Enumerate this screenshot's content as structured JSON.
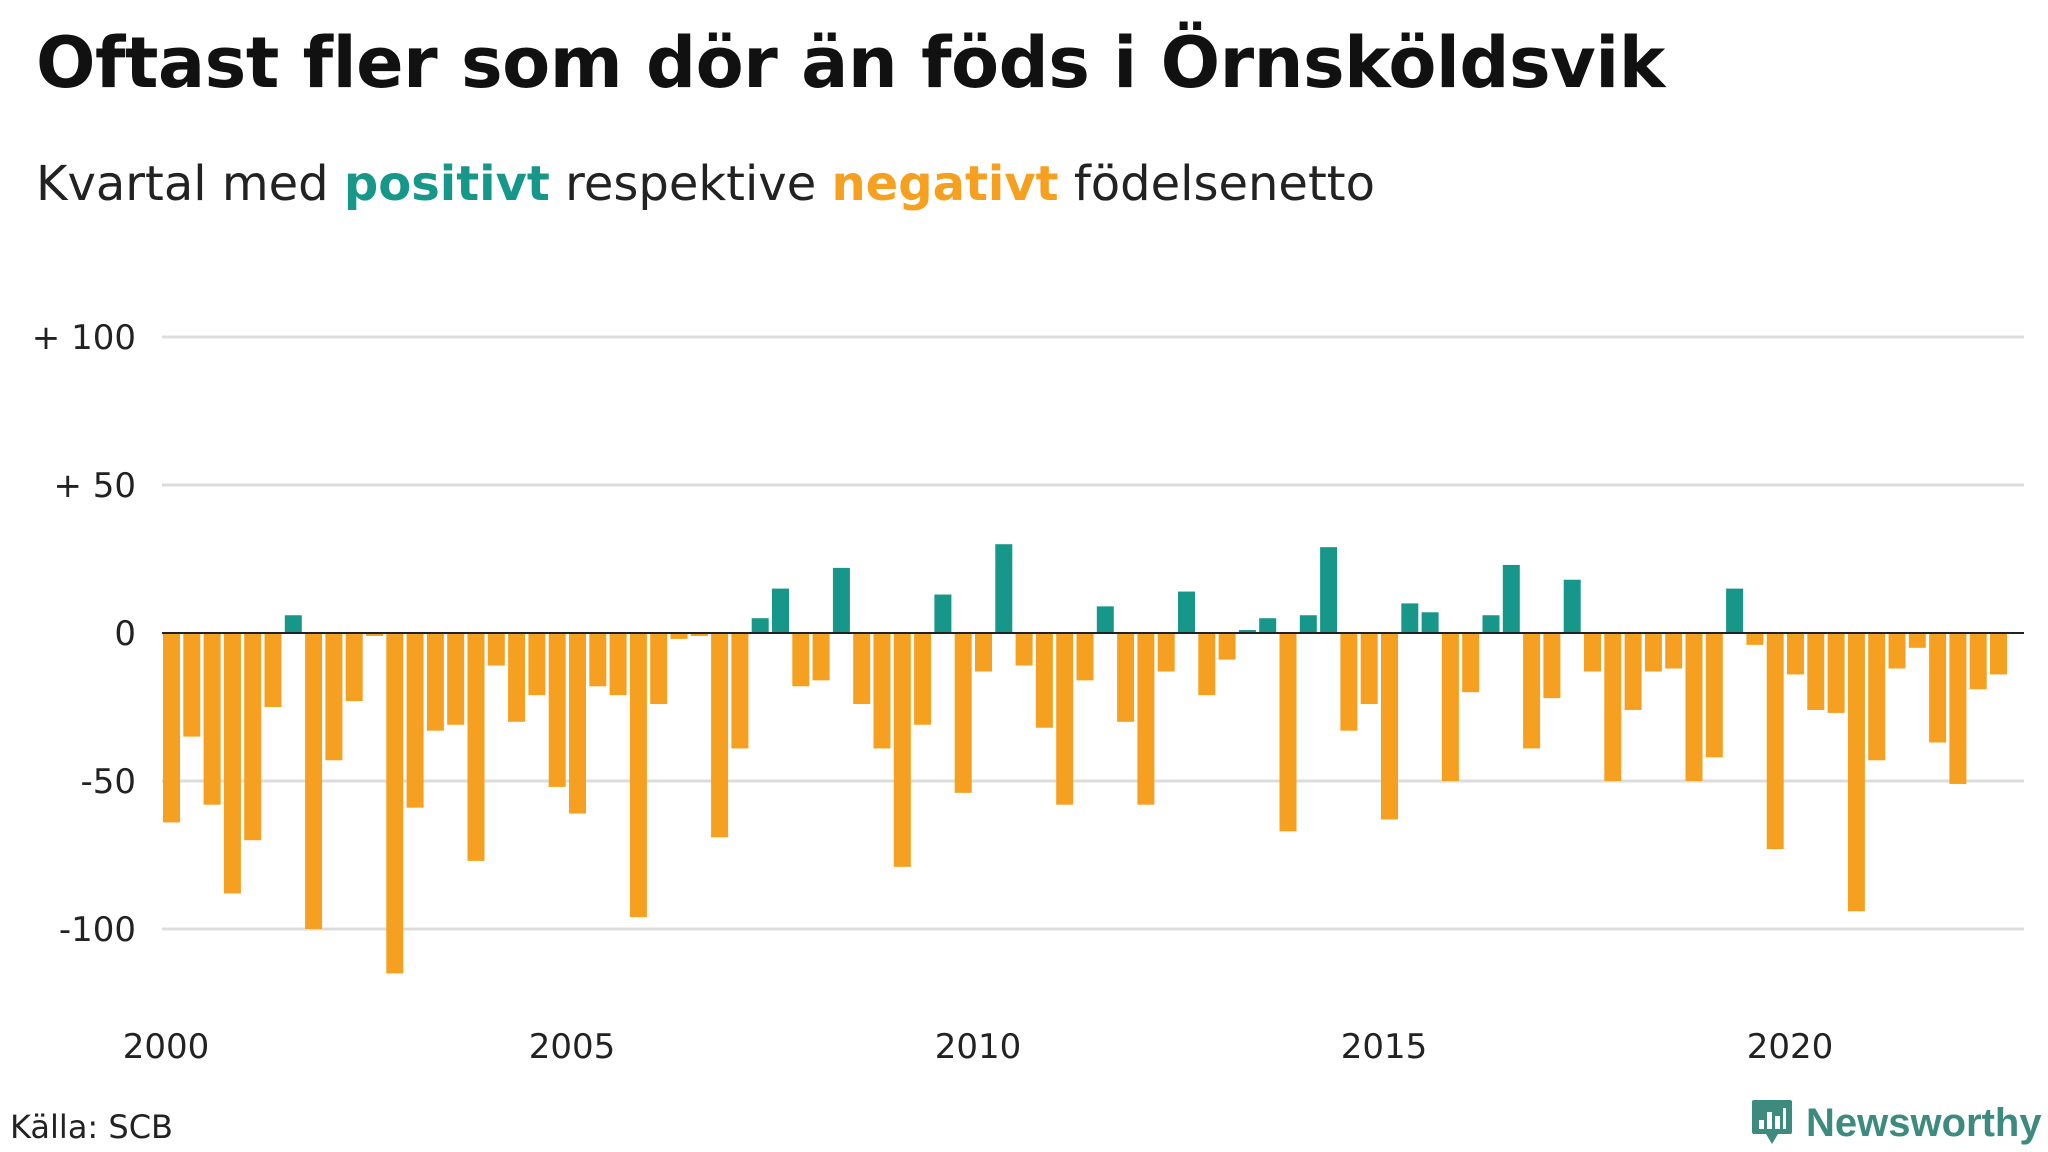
{
  "title": "Oftast fler som dör än föds i Örnsköldsvik",
  "subtitle": {
    "prefix": "Kvartal med ",
    "positive": "positivt",
    "middle": " respektive ",
    "negative": "negativt",
    "suffix": " födelsenetto"
  },
  "source": "Källa: SCB",
  "brand": "Newsworthy",
  "colors": {
    "positive": "#17978a",
    "negative": "#f5a020",
    "grid": "#dcdcdc",
    "zero": "#222222",
    "brand": "#3d8a7e"
  },
  "chart_data": {
    "type": "bar",
    "ylim": [
      -115,
      100
    ],
    "yticks": [
      {
        "value": 100,
        "label": "+ 100"
      },
      {
        "value": 50,
        "label": "+  50"
      },
      {
        "value": 0,
        "label": "0"
      },
      {
        "value": -50,
        "label": "-50"
      },
      {
        "value": -100,
        "label": "-100"
      }
    ],
    "xticks": [
      {
        "value": 2000,
        "label": "2000"
      },
      {
        "value": 2005,
        "label": "2005"
      },
      {
        "value": 2010,
        "label": "2010"
      },
      {
        "value": 2015,
        "label": "2015"
      },
      {
        "value": 2020,
        "label": "2020"
      }
    ],
    "x_start": "2000 Q1",
    "grid": true,
    "values": [
      -64,
      -35,
      -58,
      -88,
      -70,
      -25,
      6,
      -100,
      -43,
      -23,
      -1,
      -115,
      -59,
      -33,
      -31,
      -77,
      -11,
      -30,
      -21,
      -52,
      -61,
      -18,
      -21,
      -96,
      -24,
      -2,
      -1,
      -69,
      -39,
      5,
      15,
      -18,
      -16,
      22,
      -24,
      -39,
      -79,
      -31,
      13,
      -54,
      -13,
      30,
      -11,
      -32,
      -58,
      -16,
      9,
      -30,
      -58,
      -13,
      14,
      -21,
      -9,
      1,
      5,
      -67,
      6,
      29,
      -33,
      -24,
      -63,
      10,
      7,
      -50,
      -20,
      6,
      23,
      -39,
      -22,
      18,
      -13,
      -50,
      -26,
      -13,
      -12,
      -50,
      -42,
      15,
      -4,
      -73,
      -14,
      -26,
      -27,
      -94,
      -43,
      -12,
      -5,
      -37,
      -51,
      -19,
      -14
    ]
  }
}
